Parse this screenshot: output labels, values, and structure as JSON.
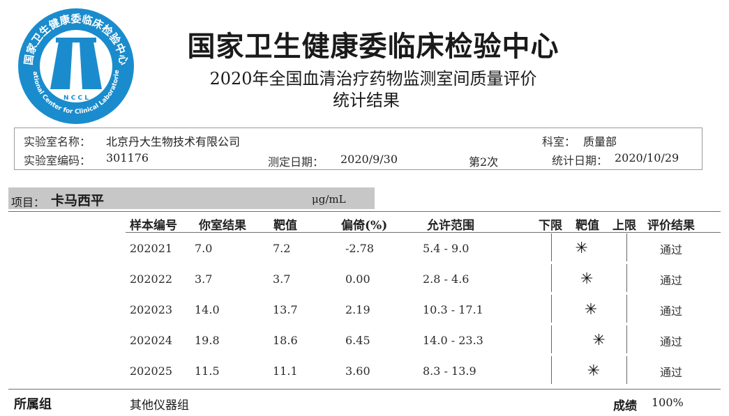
{
  "header": {
    "org_title": "国家卫生健康委临床检验中心",
    "report_title": "2020年全国血清治疗药物监测室间质量评价",
    "report_subtitle": "统计结果",
    "logo_text_top": "国家卫生健康委临床检验中心",
    "logo_text_bottom": "National Center for Clinical Laboratories",
    "logo_initials": "N C C L"
  },
  "lab_info": {
    "name_label": "实验室名称：",
    "name": "北京丹大生物技术有限公司",
    "dept_label": "科室：",
    "dept": "质量部",
    "code_label": "实验室编码：",
    "code": "301176",
    "test_date_label": "测定日期：",
    "test_date": "2020/9/30",
    "round": "第2次",
    "stat_date_label": "统计日期：",
    "stat_date": "2020/10/29"
  },
  "item": {
    "label": "项目：",
    "name": "卡马西平",
    "unit": "μg/mL"
  },
  "table": {
    "headers": {
      "sample_id": "样本编号",
      "your_result": "你室结果",
      "target": "靶值",
      "bias": "偏倚(%)",
      "range": "允许范围",
      "lower": "下限",
      "target_mark": "靶值",
      "upper": "上限",
      "evaluation": "评价结果"
    },
    "rows": [
      {
        "sample_id": "202021",
        "your_result": "7.0",
        "target": "7.2",
        "bias": "-2.78",
        "range": "5.4 - 9.0",
        "bias_value": -2.78,
        "evaluation": "通过"
      },
      {
        "sample_id": "202022",
        "your_result": "3.7",
        "target": "3.7",
        "bias": "0.00",
        "range": "2.8 - 4.6",
        "bias_value": 0.0,
        "evaluation": "通过"
      },
      {
        "sample_id": "202023",
        "your_result": "14.0",
        "target": "13.7",
        "bias": "2.19",
        "range": "10.3 - 17.1",
        "bias_value": 2.19,
        "evaluation": "通过"
      },
      {
        "sample_id": "202024",
        "your_result": "19.8",
        "target": "18.6",
        "bias": "6.45",
        "range": "14.0 - 23.3",
        "bias_value": 6.45,
        "evaluation": "通过"
      },
      {
        "sample_id": "202025",
        "your_result": "11.5",
        "target": "11.1",
        "bias": "3.60",
        "range": "8.3 - 13.9",
        "bias_value": 3.6,
        "evaluation": "通过"
      }
    ]
  },
  "footer": {
    "group_label": "所属组",
    "group": "其他仪器组",
    "score_label": "成绩",
    "score": "100%"
  },
  "colors": {
    "logo_blue": "#1a8ccd",
    "item_bar": "#c7c7c7"
  }
}
